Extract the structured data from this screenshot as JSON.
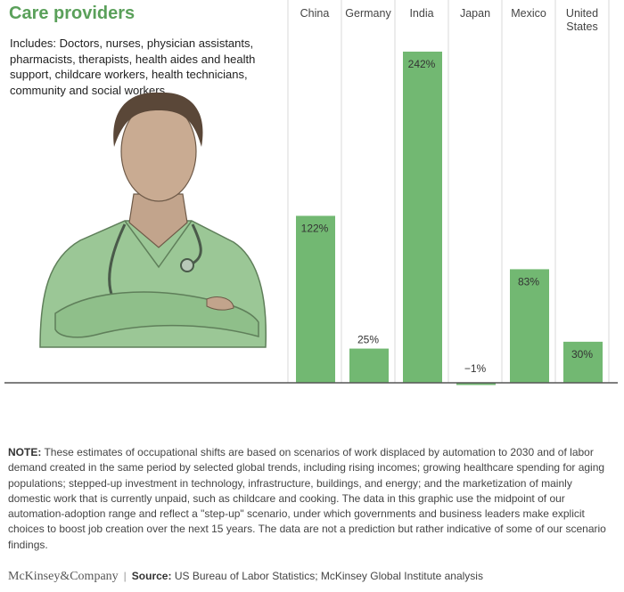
{
  "chart_data": {
    "type": "bar",
    "title": "Care providers",
    "subtitle": "Includes: Doctors, nurses, physician assistants, pharmacists, therapists, health aides and health support, childcare workers, health technicians, community and social workers",
    "categories": [
      "China",
      "Germany",
      "India",
      "Japan",
      "Mexico",
      "United States"
    ],
    "values": [
      122,
      25,
      242,
      -1,
      83,
      30
    ],
    "value_labels": [
      "122%",
      "25%",
      "242%",
      "−1%",
      "83%",
      "30%"
    ],
    "unit": "%",
    "color": "#72b872",
    "xlabel": "",
    "ylabel": "",
    "grid": false
  },
  "note": {
    "label": "NOTE:",
    "text": "These estimates of occupational shifts are based on scenarios of work displaced by automation to 2030 and of labor demand created in the same period by selected global trends, including rising incomes; growing healthcare spending for aging populations; stepped-up investment in technology, infrastructure, buildings, and energy; and the marketization of mainly domestic work that is currently unpaid, such as childcare and cooking. The data in this graphic use the midpoint of our automation-adoption range and reflect a \"step-up\" scenario, under which governments and business leaders make explicit choices to boost job creation over the next 15 years. The data are not a prediction but rather indicative of some of our scenario findings."
  },
  "footer": {
    "brand": "McKinsey&Company",
    "source_label": "Source:",
    "source_text": "US Bureau of Labor Statistics; McKinsey Global Institute analysis"
  }
}
